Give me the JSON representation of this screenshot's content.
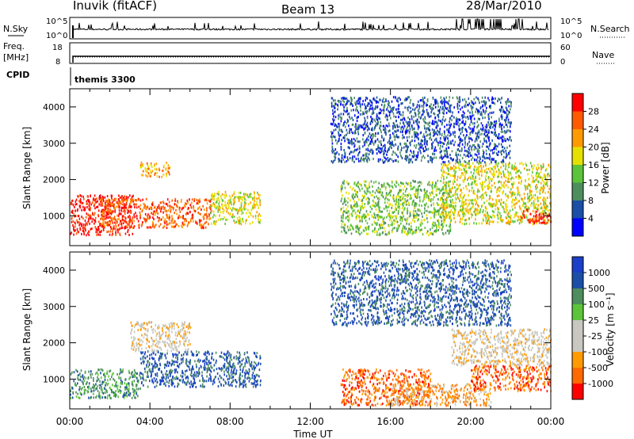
{
  "header": {
    "site": "Inuvik (fitACF)",
    "beam": "Beam 13",
    "date": "28/Mar/2010"
  },
  "strip_noise": {
    "left_label": "N.Sky",
    "right_label": "N.Search",
    "left_ticks": [
      "10^5",
      "10^0"
    ],
    "right_ticks": [
      "10^5",
      "10^0"
    ]
  },
  "strip_freq": {
    "left_label": "Freq.",
    "left_unit": "[MHz]",
    "right_label": "Nave",
    "left_ticks": [
      "18",
      "8"
    ],
    "right_ticks": [
      "60",
      "0"
    ]
  },
  "cpid": {
    "label": "CPID",
    "value": "themis 3300"
  },
  "colors": {
    "power": [
      "#0000ff",
      "#1a4fa8",
      "#4e8e5e",
      "#5cc43a",
      "#e6e000",
      "#ff9a00",
      "#ff5a00",
      "#ff0000"
    ],
    "velocity": [
      "#ff0000",
      "#ff6a00",
      "#ff9a00",
      "#c8c8c0",
      "#c8c8c0",
      "#5cc43a",
      "#4e8e5e",
      "#1a4fa8",
      "#1a3fc8"
    ]
  },
  "chart_data": [
    {
      "type": "heatmap",
      "quantity": "power",
      "ylabel": "Slant Range [km]",
      "yticks": [
        "1000",
        "2000",
        "3000",
        "4000"
      ],
      "colorbar_label": "Power [dB]",
      "colorbar_ticks": [
        "4",
        "8",
        "12",
        "16",
        "20",
        "24",
        "28"
      ],
      "ylim": [
        180,
        4500
      ],
      "xlim": [
        0,
        24
      ],
      "scatter_regions": [
        {
          "t": [
            0,
            3.2
          ],
          "r": [
            500,
            1600
          ],
          "level": 7
        },
        {
          "t": [
            1.5,
            7.0
          ],
          "r": [
            700,
            1500
          ],
          "level": 6
        },
        {
          "t": [
            3.5,
            5.0
          ],
          "r": [
            2100,
            2500
          ],
          "level": 5
        },
        {
          "t": [
            7.0,
            9.5
          ],
          "r": [
            800,
            1700
          ],
          "level": 4
        },
        {
          "t": [
            13.5,
            19.0
          ],
          "r": [
            500,
            2000
          ],
          "level": 3
        },
        {
          "t": [
            18.5,
            24.0
          ],
          "r": [
            800,
            2500
          ],
          "level": 4
        },
        {
          "t": [
            22.5,
            24.0
          ],
          "r": [
            800,
            1200
          ],
          "level": 7
        },
        {
          "t": [
            13.0,
            22.0
          ],
          "r": [
            2500,
            4300
          ],
          "level": 1
        }
      ]
    },
    {
      "type": "heatmap",
      "quantity": "velocity",
      "ylabel": "Slant Range [km]",
      "yticks": [
        "1000",
        "2000",
        "3000",
        "4000"
      ],
      "colorbar_label": "Velocity [m s⁻¹]",
      "colorbar_ticks": [
        "-1000",
        "-500",
        "-100",
        "-25",
        "25",
        "100",
        "500",
        "1000"
      ],
      "xlabel": "Time UT",
      "xticks": [
        "00:00",
        "04:00",
        "08:00",
        "12:00",
        "16:00",
        "20:00",
        "00:00"
      ],
      "ylim": [
        180,
        4500
      ],
      "xlim": [
        0,
        24
      ],
      "scatter_regions": [
        {
          "t": [
            0,
            3.5
          ],
          "r": [
            500,
            1300
          ],
          "level": 6
        },
        {
          "t": [
            3.5,
            9.5
          ],
          "r": [
            800,
            1800
          ],
          "level": 7
        },
        {
          "t": [
            3.0,
            6.0
          ],
          "r": [
            1800,
            2600
          ],
          "level": 3
        },
        {
          "t": [
            13.5,
            18.0
          ],
          "r": [
            300,
            1300
          ],
          "level": 1
        },
        {
          "t": [
            16.0,
            21.0
          ],
          "r": [
            300,
            900
          ],
          "level": 2
        },
        {
          "t": [
            19.0,
            24.0
          ],
          "r": [
            1400,
            2400
          ],
          "level": 3
        },
        {
          "t": [
            20.0,
            24.0
          ],
          "r": [
            700,
            1400
          ],
          "level": 1
        },
        {
          "t": [
            13.0,
            22.0
          ],
          "r": [
            2500,
            4300
          ],
          "level": 7
        }
      ]
    }
  ]
}
